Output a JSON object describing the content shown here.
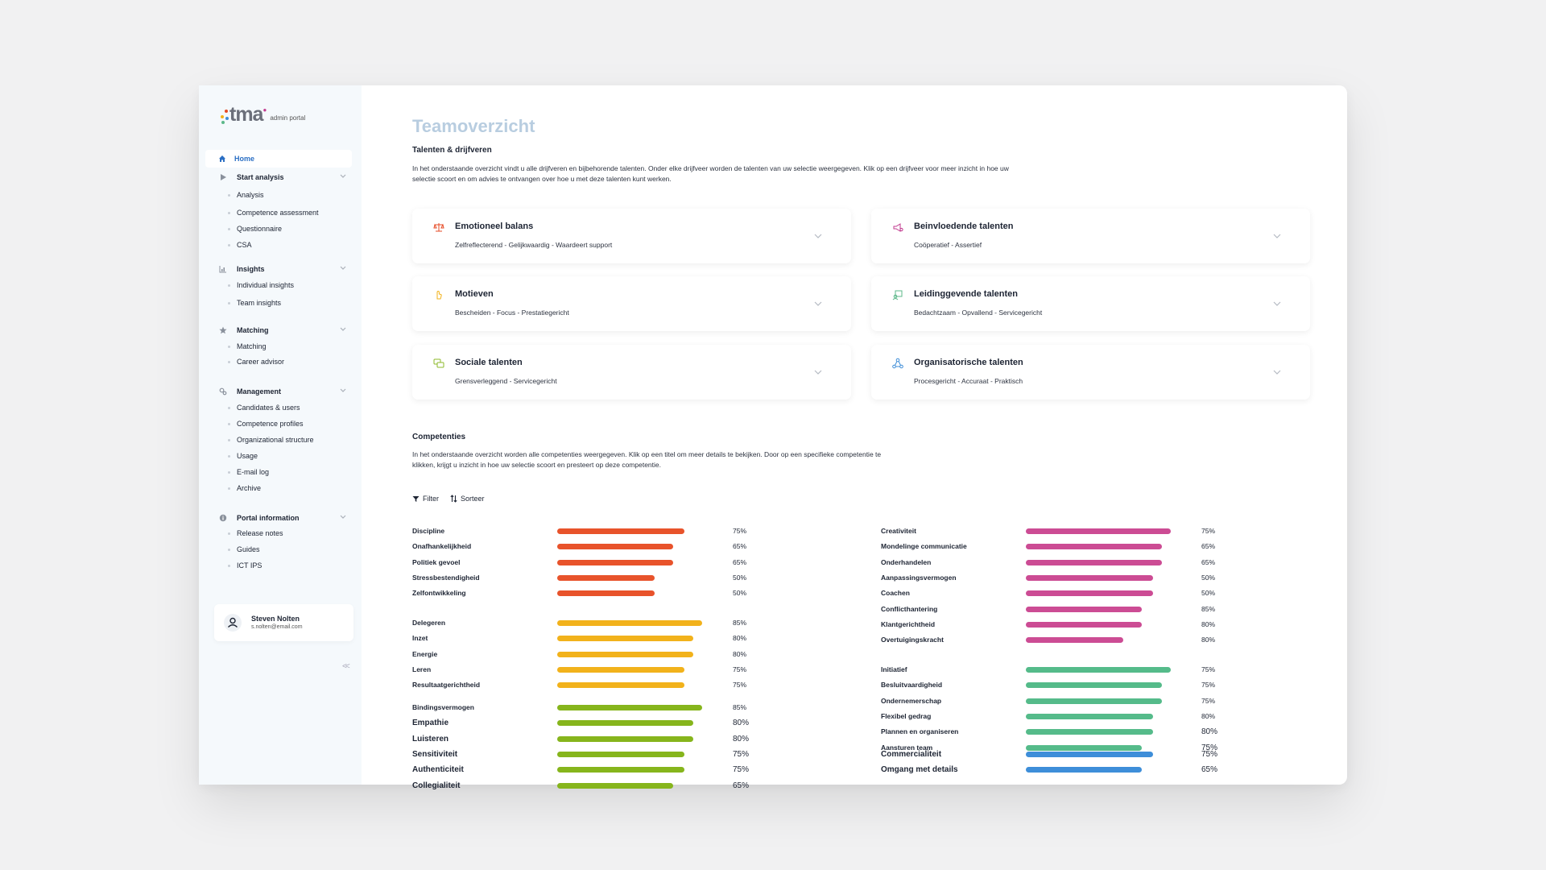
{
  "brand": {
    "name": "tma",
    "subtitle": "admin portal",
    "dot_colors": [
      "#e64b26",
      "#f2b21b",
      "#3f8ed8",
      "#5cb88a",
      "#c23b8f"
    ]
  },
  "sidebar": {
    "home": {
      "label": "Home",
      "icon": "home-icon"
    },
    "groups": [
      {
        "label": "Start analysis",
        "icon": "play-icon",
        "items": [
          "Analysis",
          "Competence assessment",
          "Questionnaire",
          "CSA"
        ]
      },
      {
        "label": "Insights",
        "icon": "bar-chart-icon",
        "items": [
          "Individual insights",
          "Team insights"
        ]
      },
      {
        "label": "Matching",
        "icon": "star-icon",
        "items": [
          "Matching",
          "Career advisor"
        ]
      },
      {
        "label": "Management",
        "icon": "gears-icon",
        "items": [
          "Candidates & users",
          "Competence profiles",
          "Organizational structure",
          "Usage",
          "E-mail log",
          "Archive"
        ]
      },
      {
        "label": "Portal information",
        "icon": "info-icon",
        "items": [
          "Release notes",
          "Guides",
          "ICT IPS"
        ]
      }
    ],
    "user": {
      "name": "Steven Nolten",
      "email": "s.nolten@email.com"
    },
    "collapse_label": "<<"
  },
  "main": {
    "title": "Teamoverzicht",
    "talents_heading": "Talenten & drijfveren",
    "talents_intro": "In het onderstaande overzicht vindt u alle drijfveren en bijbehorende talenten. Onder elke drijfveer worden de talenten van uw selectie weergegeven. Klik op een drijfveer voor meer inzicht in hoe uw selectie scoort en om advies te ontvangen over hoe u met deze talenten kunt werken.",
    "cards": [
      {
        "title": "Emotioneel balans",
        "subtitle": "Zelfreflecterend - Gelijkwaardig - Waardeert support",
        "icon": "balance-icon",
        "color": "#e64b26"
      },
      {
        "title": "Beinvloedende talenten",
        "subtitle": "Coöperatief - Assertief",
        "icon": "megaphone-icon",
        "color": "#c23b8f"
      },
      {
        "title": "Motieven",
        "subtitle": "Bescheiden - Focus - Prestatiegericht",
        "icon": "hand-icon",
        "color": "#f2b21b"
      },
      {
        "title": "Leidinggevende talenten",
        "subtitle": "Bedachtzaam - Opvallend - Servicegericht",
        "icon": "leader-icon",
        "color": "#5cb88a"
      },
      {
        "title": "Sociale talenten",
        "subtitle": "Grensverleggend - Servicegericht",
        "icon": "chat-icon",
        "color": "#8cb82a"
      },
      {
        "title": "Organisatorische talenten",
        "subtitle": "Procesgericht - Accuraat - Praktisch",
        "icon": "network-icon",
        "color": "#3f8ed8"
      }
    ],
    "comp_heading": "Competenties",
    "comp_intro": "In het onderstaande overzicht worden alle competenties weergegeven. Klik op een titel om meer details te bekijken. Door op een specifieke competentie te klikken, krijgt u inzicht in hoe uw selectie scoort en presteert op deze competentie.",
    "filter_label": "Filter",
    "sort_label": "Sorteer",
    "competencies_left": [
      {
        "color": "#e8532b",
        "items": [
          {
            "name": "Discipline",
            "value": 88,
            "pct": "75%"
          },
          {
            "name": "Onafhankelijkheid",
            "value": 80,
            "pct": "65%"
          },
          {
            "name": "Politiek gevoel",
            "value": 80,
            "pct": "65%"
          },
          {
            "name": "Stressbestendigheid",
            "value": 67,
            "pct": "50%"
          },
          {
            "name": "Zelfontwikkeling",
            "value": 67,
            "pct": "50%"
          }
        ]
      },
      {
        "color": "#f2b21b",
        "items": [
          {
            "name": "Delegeren",
            "value": 100,
            "pct": "85%"
          },
          {
            "name": "Inzet",
            "value": 94,
            "pct": "80%"
          },
          {
            "name": "Energie",
            "value": 94,
            "pct": "80%"
          },
          {
            "name": "Leren",
            "value": 88,
            "pct": "75%"
          },
          {
            "name": "Resultaatgerichtheid",
            "value": 88,
            "pct": "75%"
          }
        ]
      },
      {
        "color": "#86b51c",
        "items": [
          {
            "name": "Bindingsvermogen",
            "value": 100,
            "pct": "85%"
          },
          {
            "name": "Empathie",
            "value": 94,
            "pct": "80%",
            "big": true
          },
          {
            "name": "Luisteren",
            "value": 94,
            "pct": "80%",
            "big": true
          },
          {
            "name": "Sensitiviteit",
            "value": 88,
            "pct": "75%",
            "big": true
          },
          {
            "name": "Authenticiteit",
            "value": 88,
            "pct": "75%",
            "big": true
          },
          {
            "name": "Collegialiteit",
            "value": 80,
            "pct": "65%",
            "big": true
          }
        ]
      }
    ],
    "competencies_right": [
      {
        "color": "#cc4c94",
        "items": [
          {
            "name": "Creativiteit",
            "value": 100,
            "pct": "75%"
          },
          {
            "name": "Mondelinge communicatie",
            "value": 94,
            "pct": "65%"
          },
          {
            "name": "Onderhandelen",
            "value": 94,
            "pct": "65%"
          },
          {
            "name": "Aanpassingsvermogen",
            "value": 88,
            "pct": "50%"
          },
          {
            "name": "Coachen",
            "value": 88,
            "pct": "50%"
          },
          {
            "name": "Conflicthantering",
            "value": 80,
            "pct": "85%"
          },
          {
            "name": "Klantgerichtheid",
            "value": 80,
            "pct": "80%"
          },
          {
            "name": "Overtuigingskracht",
            "value": 67,
            "pct": "80%"
          }
        ]
      },
      {
        "color": "#55bb8a",
        "items": [
          {
            "name": "Initiatief",
            "value": 100,
            "pct": "75%"
          },
          {
            "name": "Besluitvaardigheid",
            "value": 94,
            "pct": "75%"
          },
          {
            "name": "Ondernemerschap",
            "value": 94,
            "pct": "75%"
          },
          {
            "name": "Flexibel gedrag",
            "value": 88,
            "pct": "80%"
          },
          {
            "name": "Plannen en organiseren",
            "value": 88,
            "pct": "80%",
            "bigpct": true
          },
          {
            "name": "Aansturen team",
            "value": 80,
            "pct": "75%",
            "bigpct": true
          }
        ]
      },
      {
        "color": "#3e8ed9",
        "items": [
          {
            "name": "Commercialiteit",
            "value": 88,
            "pct": "75%",
            "big": true
          },
          {
            "name": "Omgang met details",
            "value": 80,
            "pct": "65%",
            "big": true
          }
        ]
      }
    ]
  }
}
